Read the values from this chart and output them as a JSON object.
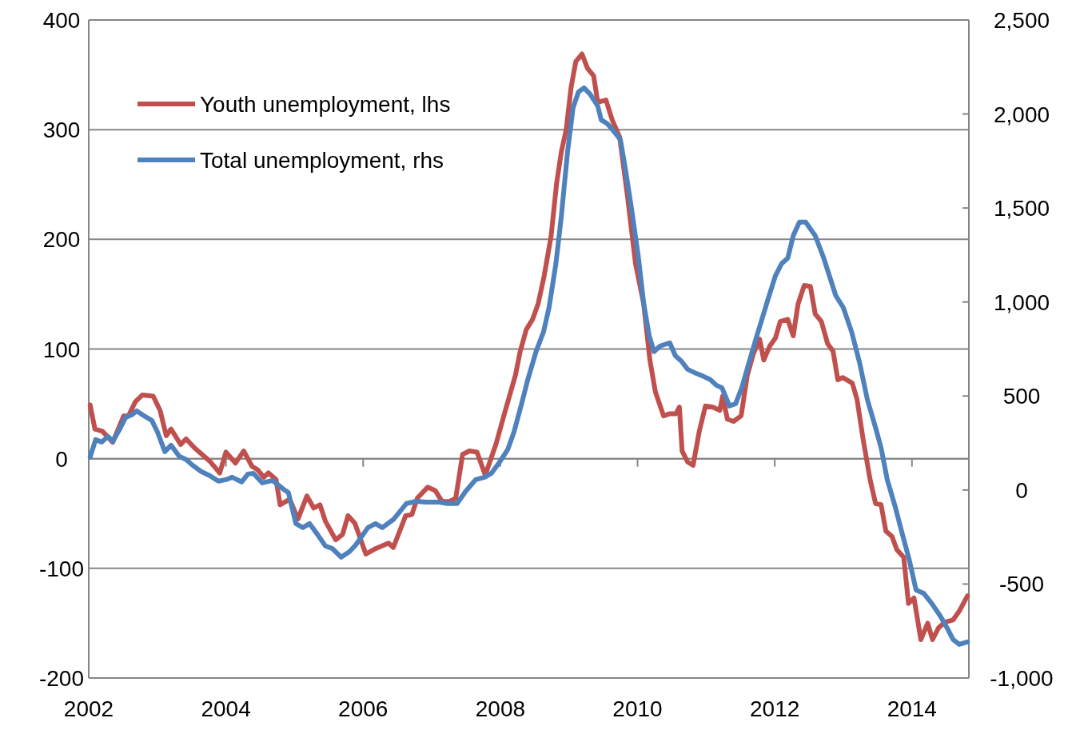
{
  "chart_data": {
    "type": "line",
    "xlim": [
      2002,
      2014.83
    ],
    "xticks": [
      2002,
      2004,
      2006,
      2008,
      2010,
      2012,
      2014
    ],
    "ylim": [
      -200,
      400
    ],
    "yticks": [
      -200,
      -100,
      0,
      100,
      200,
      300,
      400
    ],
    "y2lim": [
      -1000,
      2500
    ],
    "y2ticks": [
      {
        "value": -1000,
        "label": "-1,000"
      },
      -500,
      0,
      500,
      {
        "value": 1000,
        "label": "1,000"
      },
      {
        "value": 1500,
        "label": "1,500"
      },
      {
        "value": 2000,
        "label": "2,000"
      },
      {
        "value": 2500,
        "label": "2,500"
      }
    ],
    "grid": "y",
    "legend": "top left",
    "series": [
      {
        "name": "Youth unemployment, lhs",
        "color": "#c0504d",
        "x": [
          2002.02,
          2002.09,
          2002.2,
          2002.35,
          2002.51,
          2002.58,
          2002.68,
          2002.78,
          2002.94,
          2003.04,
          2003.13,
          2003.2,
          2003.34,
          2003.42,
          2003.54,
          2003.65,
          2003.76,
          2003.91,
          2004.0,
          2004.14,
          2004.26,
          2004.38,
          2004.46,
          2004.55,
          2004.62,
          2004.73,
          2004.79,
          2004.93,
          2005.05,
          2005.18,
          2005.28,
          2005.37,
          2005.45,
          2005.6,
          2005.7,
          2005.78,
          2005.88,
          2006.04,
          2006.18,
          2006.37,
          2006.44,
          2006.62,
          2006.71,
          2006.79,
          2006.94,
          2007.05,
          2007.15,
          2007.26,
          2007.35,
          2007.45,
          2007.55,
          2007.66,
          2007.78,
          2007.94,
          2008.05,
          2008.22,
          2008.29,
          2008.38,
          2008.47,
          2008.55,
          2008.64,
          2008.74,
          2008.82,
          2008.89,
          2008.96,
          2009.03,
          2009.1,
          2009.19,
          2009.27,
          2009.36,
          2009.42,
          2009.54,
          2009.63,
          2009.74,
          2009.86,
          2009.97,
          2010.09,
          2010.18,
          2010.26,
          2010.38,
          2010.47,
          2010.56,
          2010.61,
          2010.65,
          2010.73,
          2010.81,
          2010.9,
          2010.99,
          2011.1,
          2011.2,
          2011.24,
          2011.31,
          2011.4,
          2011.51,
          2011.6,
          2011.69,
          2011.78,
          2011.84,
          2011.93,
          2012.01,
          2012.08,
          2012.19,
          2012.27,
          2012.34,
          2012.43,
          2012.52,
          2012.59,
          2012.68,
          2012.77,
          2012.85,
          2012.92,
          2012.99,
          2013.13,
          2013.2,
          2013.29,
          2013.39,
          2013.47,
          2013.55,
          2013.62,
          2013.71,
          2013.78,
          2013.88,
          2013.95,
          2014.03,
          2014.13,
          2014.23,
          2014.3,
          2014.39,
          2014.48,
          2014.6,
          2014.69,
          2014.81
        ],
        "values": [
          49,
          27,
          25,
          15,
          39,
          39,
          52,
          58,
          57,
          44,
          21,
          27,
          13,
          18,
          10,
          4,
          -2,
          -13,
          6,
          -4,
          7,
          -7,
          -10,
          -17,
          -13,
          -19,
          -42,
          -37,
          -55,
          -34,
          -45,
          -42,
          -57,
          -74,
          -69,
          -52,
          -59,
          -87,
          -82,
          -77,
          -81,
          -52,
          -51,
          -36,
          -26,
          -29,
          -39,
          -39,
          -36,
          4,
          7,
          6,
          -15,
          14,
          39,
          76,
          98,
          118,
          127,
          141,
          167,
          203,
          251,
          280,
          300,
          338,
          362,
          369,
          356,
          349,
          325,
          327,
          309,
          293,
          236,
          178,
          141,
          90,
          61,
          39,
          41,
          41,
          47,
          7,
          -3,
          -6,
          25,
          48,
          47,
          44,
          57,
          36,
          34,
          39,
          76,
          96,
          109,
          90,
          103,
          110,
          125,
          127,
          112,
          141,
          158,
          157,
          132,
          125,
          105,
          98,
          72,
          74,
          69,
          54,
          17,
          -19,
          -41,
          -42,
          -66,
          -71,
          -83,
          -90,
          -132,
          -127,
          -165,
          -150,
          -165,
          -154,
          -149,
          -147,
          -139,
          -125
        ]
      },
      {
        "name": "Total unemployment, rhs",
        "color": "#4f81bd",
        "axis": "y2",
        "x": [
          2002.02,
          2002.1,
          2002.19,
          2002.28,
          2002.35,
          2002.45,
          2002.54,
          2002.63,
          2002.7,
          2002.8,
          2002.92,
          2003.0,
          2003.11,
          2003.2,
          2003.32,
          2003.42,
          2003.5,
          2003.64,
          2003.76,
          2003.89,
          2004.0,
          2004.09,
          2004.23,
          2004.32,
          2004.4,
          2004.53,
          2004.68,
          2004.84,
          2004.91,
          2005.02,
          2005.12,
          2005.22,
          2005.33,
          2005.45,
          2005.55,
          2005.68,
          2005.8,
          2005.89,
          2006.07,
          2006.18,
          2006.28,
          2006.44,
          2006.63,
          2006.77,
          2006.92,
          2007.09,
          2007.23,
          2007.37,
          2007.49,
          2007.64,
          2007.77,
          2007.87,
          2007.99,
          2008.11,
          2008.2,
          2008.31,
          2008.4,
          2008.52,
          2008.63,
          2008.71,
          2008.81,
          2008.89,
          2008.98,
          2009.06,
          2009.14,
          2009.22,
          2009.31,
          2009.42,
          2009.47,
          2009.56,
          2009.66,
          2009.75,
          2009.82,
          2009.91,
          2010.01,
          2010.09,
          2010.17,
          2010.24,
          2010.33,
          2010.47,
          2010.55,
          2010.64,
          2010.73,
          2010.85,
          2010.94,
          2011.06,
          2011.15,
          2011.23,
          2011.34,
          2011.43,
          2011.52,
          2011.62,
          2011.74,
          2011.9,
          2012.01,
          2012.1,
          2012.19,
          2012.27,
          2012.36,
          2012.45,
          2012.59,
          2012.71,
          2012.89,
          2013.0,
          2013.12,
          2013.24,
          2013.35,
          2013.47,
          2013.55,
          2013.64,
          2013.76,
          2013.85,
          2013.96,
          2014.06,
          2014.17,
          2014.29,
          2014.41,
          2014.51,
          2014.6,
          2014.69,
          2014.81
        ],
        "values": [
          174,
          268,
          255,
          285,
          259,
          323,
          387,
          400,
          421,
          396,
          370,
          310,
          204,
          238,
          179,
          162,
          136,
          98,
          77,
          47,
          55,
          68,
          43,
          85,
          89,
          38,
          51,
          4,
          -13,
          -179,
          -200,
          -179,
          -234,
          -298,
          -311,
          -357,
          -328,
          -293,
          -200,
          -179,
          -200,
          -157,
          -72,
          -60,
          -64,
          -64,
          -72,
          -72,
          -9,
          55,
          68,
          89,
          149,
          217,
          310,
          459,
          587,
          736,
          842,
          970,
          1204,
          1459,
          1799,
          2033,
          2118,
          2139,
          2105,
          2042,
          1969,
          1948,
          1906,
          1863,
          1714,
          1502,
          1246,
          991,
          821,
          736,
          766,
          783,
          715,
          685,
          642,
          621,
          608,
          587,
          557,
          544,
          447,
          459,
          544,
          672,
          821,
          1012,
          1140,
          1204,
          1234,
          1353,
          1425,
          1425,
          1353,
          1238,
          1034,
          970,
          842,
          672,
          481,
          332,
          225,
          55,
          -94,
          -221,
          -370,
          -532,
          -549,
          -604,
          -668,
          -732,
          -795,
          -821,
          -808
        ]
      }
    ]
  }
}
